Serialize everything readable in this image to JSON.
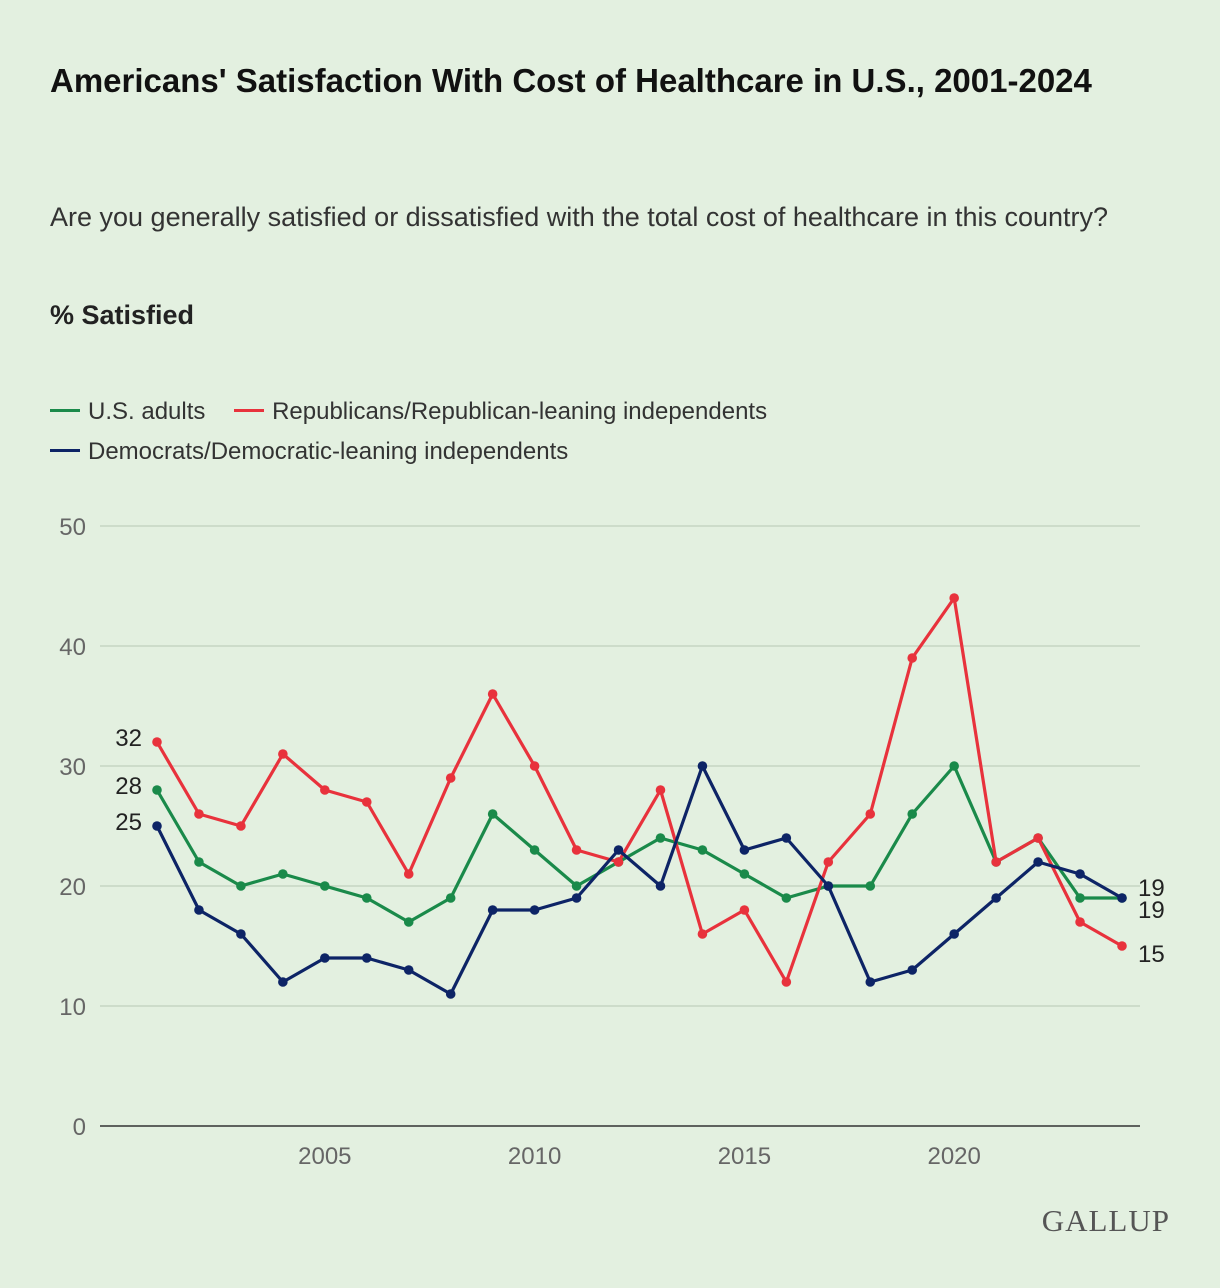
{
  "title": "Americans' Satisfaction With Cost of Healthcare in U.S., 2001-2024",
  "subtitle": "Are you generally satisfied or dissatisfied with the total cost of healthcare in this country?",
  "measure": "% Satisfied",
  "logo": "GALLUP",
  "colors": {
    "us_adults": "#1a8a4a",
    "republicans": "#e8323c",
    "democrats": "#0d2466"
  },
  "legend": [
    {
      "name": "U.S. adults",
      "color": "#1a8a4a"
    },
    {
      "name": "Republicans/Republican-leaning independents",
      "color": "#e8323c"
    },
    {
      "name": "Democrats/Democratic-leaning independents",
      "color": "#0d2466"
    }
  ],
  "chart_data": {
    "type": "line",
    "x": [
      2001,
      2002,
      2003,
      2004,
      2005,
      2006,
      2007,
      2008,
      2009,
      2010,
      2011,
      2012,
      2013,
      2014,
      2015,
      2016,
      2017,
      2018,
      2019,
      2020,
      2021,
      2022,
      2023,
      2024
    ],
    "ylim": [
      0,
      50
    ],
    "yticks": [
      0,
      10,
      20,
      30,
      40,
      50
    ],
    "xticks": [
      2005,
      2010,
      2015,
      2020
    ],
    "grid": true,
    "legend_position": "top-left",
    "series": [
      {
        "name": "U.S. adults",
        "color": "#1a8a4a",
        "values": [
          28,
          22,
          20,
          21,
          20,
          19,
          17,
          19,
          26,
          23,
          20,
          22,
          24,
          23,
          21,
          19,
          20,
          20,
          26,
          30,
          22,
          24,
          19,
          19
        ],
        "start_label": "28",
        "end_label": "19"
      },
      {
        "name": "Republicans/Republican-leaning independents",
        "color": "#e8323c",
        "values": [
          32,
          26,
          25,
          31,
          28,
          27,
          21,
          29,
          36,
          30,
          23,
          22,
          28,
          16,
          18,
          12,
          22,
          26,
          39,
          44,
          22,
          24,
          17,
          15
        ],
        "start_label": "32",
        "end_label": "15"
      },
      {
        "name": "Democrats/Democratic-leaning independents",
        "color": "#0d2466",
        "values": [
          25,
          18,
          16,
          12,
          14,
          14,
          13,
          11,
          18,
          18,
          19,
          23,
          20,
          30,
          23,
          24,
          20,
          12,
          13,
          16,
          19,
          22,
          21,
          19
        ],
        "start_label": "25",
        "end_label": "19"
      }
    ]
  }
}
